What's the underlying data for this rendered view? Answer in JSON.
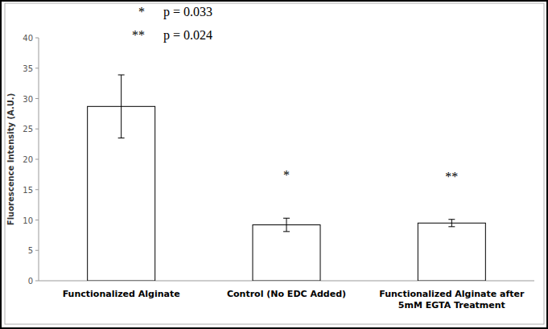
{
  "chart_data": {
    "type": "bar",
    "y_label": "Fluorescence Intensity (A.U.)",
    "categories": [
      "Functionalized Alginate",
      "Control (No EDC Added)",
      "Functionalized Alginate after 5mM EGTA Treatment"
    ],
    "values": [
      28.7,
      9.2,
      9.5
    ],
    "errors": [
      5.2,
      1.1,
      0.6
    ],
    "significance_marks": [
      null,
      "*",
      "**"
    ],
    "annotations": [
      {
        "marker": "*",
        "text": "p = 0.033"
      },
      {
        "marker": "**",
        "text": "p = 0.024"
      }
    ],
    "color": "#ffffff",
    "ylim": [
      0,
      40
    ],
    "yticks": [
      0,
      5,
      10,
      15,
      20,
      25,
      30,
      35,
      40
    ],
    "grid": false
  }
}
